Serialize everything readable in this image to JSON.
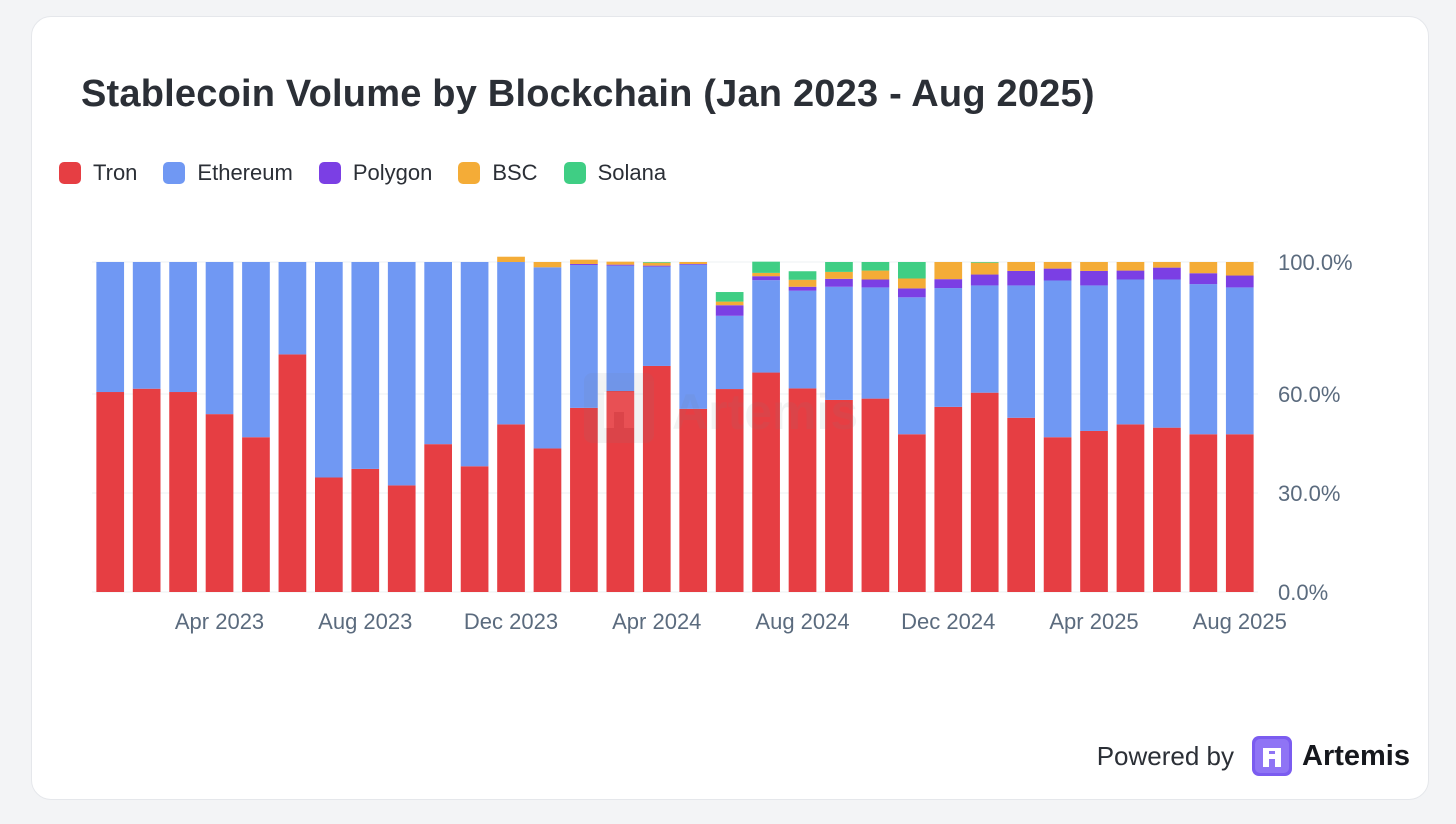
{
  "title": "Stablecoin Volume by Blockchain (Jan 2023 - Aug 2025)",
  "watermark": "Artemis",
  "footer": {
    "powered_label": "Powered by",
    "brand_name": "Artemis"
  },
  "colors": {
    "Tron": "#e63e43",
    "Ethereum": "#7098f3",
    "Polygon": "#7b3fe4",
    "BSC": "#f4ac37",
    "Solana": "#3fce84",
    "gridline": "#eef0f3",
    "tick_text": "#5b6b7e",
    "brand": "#7b5cf0"
  },
  "chart_data": {
    "type": "bar",
    "stacked": true,
    "normalized": true,
    "title": "Stablecoin Volume by Blockchain (Jan 2023 - Aug 2025)",
    "xlabel": "",
    "ylabel": "",
    "y_axis_position": "right",
    "ylim": [
      0,
      100
    ],
    "y_ticks": [
      0,
      30,
      60,
      100
    ],
    "y_tick_labels": [
      "0.0%",
      "30.0%",
      "60.0%",
      "100.0%"
    ],
    "legend_position": "top-left",
    "grid": true,
    "categories": [
      "Jan 2023",
      "Feb 2023",
      "Mar 2023",
      "Apr 2023",
      "May 2023",
      "Jun 2023",
      "Jul 2023",
      "Aug 2023",
      "Sep 2023",
      "Oct 2023",
      "Nov 2023",
      "Dec 2023",
      "Jan 2024",
      "Feb 2024",
      "Mar 2024",
      "Apr 2024",
      "May 2024",
      "Jun 2024",
      "Jul 2024",
      "Aug 2024",
      "Sep 2024",
      "Oct 2024",
      "Nov 2024",
      "Dec 2024",
      "Jan 2025",
      "Feb 2025",
      "Mar 2025",
      "Apr 2025",
      "May 2025",
      "Jun 2025",
      "Jul 2025",
      "Aug 2025"
    ],
    "x_tick_labels": [
      {
        "category": "Apr 2023",
        "label": "Apr 2023"
      },
      {
        "category": "Aug 2023",
        "label": "Aug 2023"
      },
      {
        "category": "Dec 2023",
        "label": "Dec 2023"
      },
      {
        "category": "Apr 2024",
        "label": "Apr 2024"
      },
      {
        "category": "Aug 2024",
        "label": "Aug 2024"
      },
      {
        "category": "Dec 2024",
        "label": "Dec 2024"
      },
      {
        "category": "Apr 2025",
        "label": "Apr 2025"
      },
      {
        "category": "Aug 2025",
        "label": "Aug 2025"
      }
    ],
    "series": [
      {
        "name": "Tron",
        "values": [
          60.6,
          61.6,
          60.6,
          53.9,
          46.9,
          72.0,
          34.7,
          37.3,
          32.3,
          44.8,
          38.1,
          50.8,
          43.5,
          55.8,
          60.9,
          68.5,
          55.5,
          61.5,
          66.5,
          61.7,
          58.2,
          58.6,
          47.8,
          56.1,
          60.4,
          52.8,
          46.9,
          48.8,
          50.8,
          49.8,
          47.8,
          47.8
        ]
      },
      {
        "name": "Ethereum",
        "values": [
          39.4,
          38.4,
          39.4,
          46.1,
          53.1,
          28.0,
          65.3,
          62.7,
          67.7,
          55.2,
          61.9,
          49.2,
          54.9,
          43.3,
          38.0,
          30.1,
          43.7,
          22.2,
          28.0,
          29.6,
          34.3,
          33.7,
          41.5,
          36.0,
          32.5,
          40.1,
          47.5,
          44.1,
          43.9,
          44.9,
          45.5,
          44.5
        ]
      },
      {
        "name": "Polygon",
        "values": [
          0,
          0,
          0,
          0,
          0,
          0,
          0,
          0,
          0,
          0,
          0,
          0,
          0,
          0.3,
          0.3,
          0.3,
          0.2,
          3.2,
          1.2,
          1.2,
          2.4,
          2.4,
          2.7,
          2.7,
          3.3,
          4.4,
          3.6,
          4.4,
          2.7,
          3.6,
          3.3,
          3.6
        ]
      },
      {
        "name": "BSC",
        "values": [
          0,
          0,
          0,
          0,
          0,
          0,
          0,
          0,
          0,
          0,
          0,
          1.6,
          1.6,
          1.3,
          0.9,
          0.9,
          0.6,
          1.1,
          1.0,
          2.1,
          2.1,
          2.7,
          3.0,
          5.2,
          3.6,
          2.7,
          2.0,
          2.7,
          2.6,
          1.7,
          3.4,
          4.1
        ]
      },
      {
        "name": "Solana",
        "values": [
          0,
          0,
          0,
          0,
          0,
          0,
          0,
          0,
          0,
          0,
          0,
          0,
          0,
          0,
          0,
          0.2,
          0,
          2.9,
          3.4,
          2.6,
          3.0,
          2.6,
          5.0,
          0,
          0.2,
          0,
          0,
          0,
          0,
          0,
          0,
          0
        ]
      }
    ]
  }
}
